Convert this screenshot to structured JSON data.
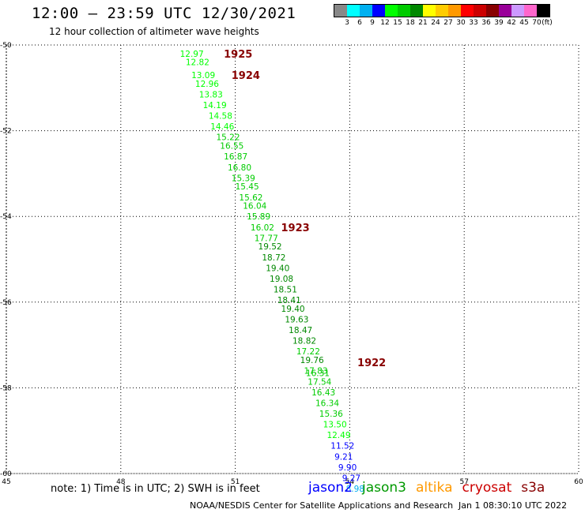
{
  "header": {
    "title": "12:00 – 23:59 UTC 12/30/2021",
    "subtitle": "12 hour collection of altimeter wave heights"
  },
  "legend": {
    "labels": [
      "3",
      "6",
      "9",
      "12",
      "15",
      "18",
      "21",
      "24",
      "27",
      "30",
      "33",
      "36",
      "39",
      "42",
      "45",
      "70"
    ],
    "unit": "(ft)",
    "colors": [
      "#888888",
      "#00ffff",
      "#00b0f0",
      "#0000ff",
      "#00ff00",
      "#00cc00",
      "#008800",
      "#ffff00",
      "#ffcc00",
      "#ff9900",
      "#ff0000",
      "#cc0000",
      "#880000",
      "#990099",
      "#cc99ff",
      "#ff66cc",
      "#000000"
    ]
  },
  "footer": {
    "note": "note: 1) Time is in UTC; 2) SWH is in feet",
    "credit": "NOAA/NESDIS Center for Satellite Applications and Research",
    "timestamp": "Jan  1 08:30:10 UTC 2022",
    "satellites": [
      {
        "name": "jason2",
        "color": "#0000ff"
      },
      {
        "name": "jason3",
        "color": "#009900"
      },
      {
        "name": "altika",
        "color": "#ff9900"
      },
      {
        "name": "cryosat",
        "color": "#cc0000"
      },
      {
        "name": "s3a",
        "color": "#880000"
      }
    ]
  },
  "chart_data": {
    "type": "scatter",
    "xlim": [
      45,
      60
    ],
    "ylim": [
      -60,
      -50
    ],
    "x_ticks": [
      45,
      48,
      51,
      54,
      57,
      60
    ],
    "y_ticks": [
      -50,
      -52,
      -54,
      -56,
      -58,
      -60
    ],
    "grid": true,
    "time_labels": [
      {
        "label": "1925",
        "lon": 50.7,
        "lat": -50.2
      },
      {
        "label": "1924",
        "lon": 50.9,
        "lat": -50.7
      },
      {
        "label": "1923",
        "lon": 52.2,
        "lat": -54.25
      },
      {
        "label": "1922",
        "lon": 54.2,
        "lat": -57.4
      }
    ],
    "points": [
      {
        "lon": 49.55,
        "lat": -50.2,
        "swh": "12.97"
      },
      {
        "lon": 49.7,
        "lat": -50.4,
        "swh": "12.82"
      },
      {
        "lon": 49.85,
        "lat": -50.7,
        "swh": "13.09"
      },
      {
        "lon": 49.95,
        "lat": -50.9,
        "swh": "12.96"
      },
      {
        "lon": 50.05,
        "lat": -51.15,
        "swh": "13.83"
      },
      {
        "lon": 50.15,
        "lat": -51.4,
        "swh": "14.19"
      },
      {
        "lon": 50.3,
        "lat": -51.65,
        "swh": "14.58"
      },
      {
        "lon": 50.35,
        "lat": -51.9,
        "swh": "14.46"
      },
      {
        "lon": 50.5,
        "lat": -52.15,
        "swh": "15.22"
      },
      {
        "lon": 50.6,
        "lat": -52.35,
        "swh": "16.55"
      },
      {
        "lon": 50.7,
        "lat": -52.6,
        "swh": "16.87"
      },
      {
        "lon": 50.8,
        "lat": -52.85,
        "swh": "16.80"
      },
      {
        "lon": 50.9,
        "lat": -53.1,
        "swh": "15.39"
      },
      {
        "lon": 51.0,
        "lat": -53.3,
        "swh": "15.45"
      },
      {
        "lon": 51.1,
        "lat": -53.55,
        "swh": "15.62"
      },
      {
        "lon": 51.2,
        "lat": -53.75,
        "swh": "16.04"
      },
      {
        "lon": 51.3,
        "lat": -54.0,
        "swh": "15.89"
      },
      {
        "lon": 51.4,
        "lat": -54.25,
        "swh": "16.02"
      },
      {
        "lon": 51.5,
        "lat": -54.5,
        "swh": "17.77"
      },
      {
        "lon": 51.6,
        "lat": -54.7,
        "swh": "19.52"
      },
      {
        "lon": 51.7,
        "lat": -54.95,
        "swh": "18.72"
      },
      {
        "lon": 51.8,
        "lat": -55.2,
        "swh": "19.40"
      },
      {
        "lon": 51.9,
        "lat": -55.45,
        "swh": "19.08"
      },
      {
        "lon": 52.0,
        "lat": -55.7,
        "swh": "18.51"
      },
      {
        "lon": 52.1,
        "lat": -55.95,
        "swh": "18.41"
      },
      {
        "lon": 52.2,
        "lat": -56.15,
        "swh": "19.40"
      },
      {
        "lon": 52.3,
        "lat": -56.4,
        "swh": "19.63"
      },
      {
        "lon": 52.4,
        "lat": -56.65,
        "swh": "18.47"
      },
      {
        "lon": 52.5,
        "lat": -56.9,
        "swh": "18.82"
      },
      {
        "lon": 52.6,
        "lat": -57.15,
        "swh": "17.22"
      },
      {
        "lon": 52.7,
        "lat": -57.35,
        "swh": "19.76"
      },
      {
        "lon": 52.8,
        "lat": -57.6,
        "swh": "17.83"
      },
      {
        "lon": 52.85,
        "lat": -57.65,
        "swh": "16.31"
      },
      {
        "lon": 52.9,
        "lat": -57.85,
        "swh": "17.54"
      },
      {
        "lon": 53.0,
        "lat": -58.1,
        "swh": "16.43"
      },
      {
        "lon": 53.1,
        "lat": -58.35,
        "swh": "16.34"
      },
      {
        "lon": 53.2,
        "lat": -58.6,
        "swh": "15.36"
      },
      {
        "lon": 53.3,
        "lat": -58.85,
        "swh": "13.50"
      },
      {
        "lon": 53.4,
        "lat": -59.1,
        "swh": "12.49"
      },
      {
        "lon": 53.5,
        "lat": -59.35,
        "swh": "11.52"
      },
      {
        "lon": 53.6,
        "lat": -59.6,
        "swh": "9.21"
      },
      {
        "lon": 53.7,
        "lat": -59.85,
        "swh": "9.90"
      },
      {
        "lon": 53.8,
        "lat": -60.1,
        "swh": "9.27"
      },
      {
        "lon": 53.9,
        "lat": -60.35,
        "swh": "8.98"
      }
    ]
  }
}
